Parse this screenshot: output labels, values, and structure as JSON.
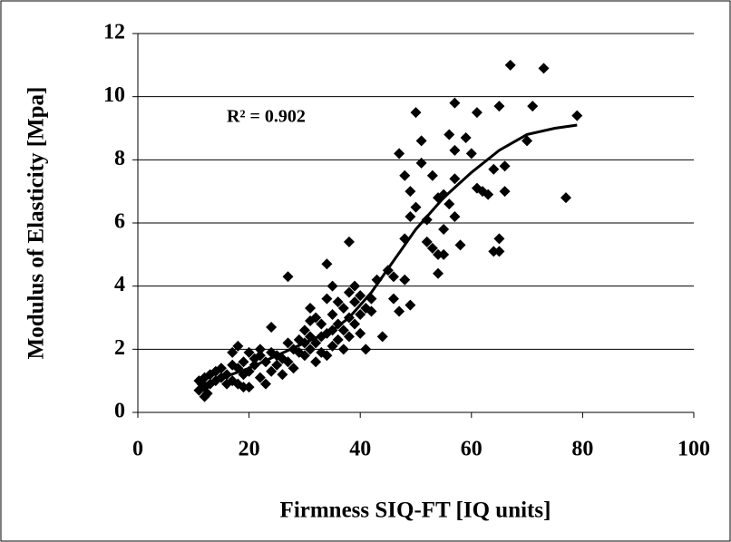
{
  "chart_data": {
    "type": "scatter",
    "xlabel": "Firmness SIQ-FT [IQ units]",
    "ylabel": "Modulus of Elasticity [Mpa]",
    "annotation": "R² = 0.902",
    "xlim": [
      0,
      100
    ],
    "xticks": [
      0,
      20,
      40,
      60,
      80,
      100
    ],
    "ylim": [
      0,
      12
    ],
    "yticks": [
      0,
      2,
      4,
      6,
      8,
      10,
      12
    ],
    "grid": "y",
    "series": [
      {
        "color": "#000000",
        "x": [
          11,
          11,
          11.5,
          12,
          12,
          12,
          12.5,
          13,
          13,
          14,
          14,
          15,
          15,
          16,
          16,
          17,
          17,
          17,
          18,
          18,
          18,
          19,
          19,
          19,
          20,
          20,
          20,
          21,
          21,
          22,
          22,
          22,
          23,
          23,
          24,
          24,
          24,
          25,
          25,
          26,
          26,
          27,
          27,
          27,
          28,
          28,
          29,
          29,
          30,
          30,
          30,
          31,
          31,
          31,
          31,
          32,
          32,
          32,
          33,
          33,
          33,
          34,
          34,
          34,
          34,
          35,
          35,
          35,
          35,
          36,
          36,
          36,
          37,
          37,
          37,
          38,
          38,
          38,
          38,
          39,
          39,
          39,
          40,
          40,
          40,
          41,
          41,
          42,
          42,
          43,
          44,
          45,
          46,
          46,
          47,
          47,
          48,
          48,
          48,
          49,
          49,
          49,
          50,
          50,
          51,
          51,
          52,
          52,
          53,
          53,
          54,
          54,
          54,
          55,
          55,
          55,
          56,
          56,
          57,
          57,
          57,
          57,
          58,
          59,
          60,
          61,
          61,
          62,
          63,
          64,
          64,
          65,
          65,
          65,
          66,
          66,
          67,
          70,
          71,
          73,
          77,
          79
        ],
        "values": [
          0.7,
          1.0,
          0.9,
          0.5,
          0.8,
          1.1,
          0.6,
          1.2,
          0.9,
          1.0,
          1.3,
          1.4,
          1.1,
          1.2,
          0.9,
          1.9,
          1.5,
          1.0,
          2.1,
          1.4,
          0.9,
          1.6,
          1.2,
          0.8,
          1.9,
          1.3,
          0.8,
          1.7,
          1.5,
          2.0,
          1.8,
          1.1,
          1.6,
          0.9,
          2.7,
          1.9,
          1.3,
          1.8,
          1.5,
          1.7,
          1.2,
          4.3,
          2.2,
          1.6,
          2.0,
          1.4,
          2.3,
          1.9,
          2.6,
          2.2,
          1.8,
          3.3,
          2.9,
          2.4,
          2.0,
          3.0,
          2.2,
          1.6,
          2.8,
          2.4,
          1.9,
          4.7,
          3.6,
          2.5,
          1.8,
          4.0,
          3.1,
          2.6,
          2.1,
          3.5,
          2.8,
          2.3,
          3.3,
          2.6,
          2.0,
          5.4,
          3.8,
          3.0,
          2.4,
          4.0,
          3.5,
          2.8,
          3.7,
          3.1,
          2.5,
          2.0,
          3.3,
          3.6,
          3.2,
          4.2,
          2.4,
          4.5,
          3.6,
          4.3,
          8.2,
          3.2,
          7.5,
          5.5,
          4.2,
          7.0,
          6.2,
          3.4,
          9.5,
          6.5,
          8.6,
          7.9,
          6.1,
          5.4,
          5.2,
          7.5,
          6.8,
          5.0,
          4.4,
          6.9,
          5.8,
          5.0,
          8.8,
          6.6,
          9.8,
          8.3,
          7.4,
          6.2,
          5.3,
          8.7,
          8.2,
          9.5,
          7.1,
          7.0,
          6.9,
          7.7,
          5.1,
          9.7,
          5.5,
          5.1,
          7.8,
          7.0,
          11.0,
          8.6,
          9.7,
          10.9,
          6.8,
          9.4
        ]
      }
    ],
    "trend": {
      "color": "#000000",
      "x": [
        12,
        20,
        25,
        30,
        35,
        38,
        42,
        46,
        50,
        55,
        60,
        65,
        70,
        75,
        79
      ],
      "values": [
        0.9,
        1.4,
        1.8,
        2.2,
        2.6,
        3.0,
        3.8,
        4.8,
        5.8,
        6.8,
        7.6,
        8.3,
        8.8,
        9.0,
        9.1
      ]
    }
  }
}
